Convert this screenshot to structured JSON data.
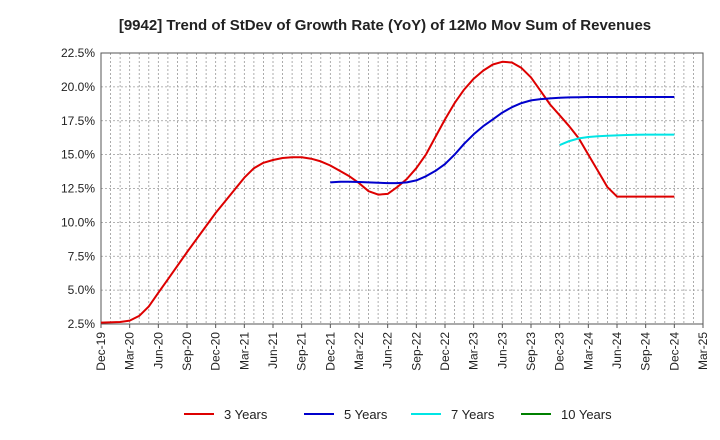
{
  "chart_data": {
    "type": "line",
    "title": "[9942]  Trend of StDev of Growth Rate (YoY) of 12Mo Mov Sum of Revenues",
    "xlabel": "",
    "ylabel": "",
    "ylim": [
      2.5,
      22.5
    ],
    "y_ticks": [
      2.5,
      5.0,
      7.5,
      10.0,
      12.5,
      15.0,
      17.5,
      20.0,
      22.5
    ],
    "y_tick_labels": [
      "2.5%",
      "5.0%",
      "7.5%",
      "10.0%",
      "12.5%",
      "15.0%",
      "17.5%",
      "20.0%",
      "22.5%"
    ],
    "x_tick_labels": [
      "Dec-19",
      "Mar-20",
      "Jun-20",
      "Sep-20",
      "Dec-20",
      "Mar-21",
      "Jun-21",
      "Sep-21",
      "Dec-21",
      "Mar-22",
      "Jun-22",
      "Sep-22",
      "Dec-22",
      "Mar-23",
      "Jun-23",
      "Sep-23",
      "Dec-23",
      "Mar-24",
      "Jun-24",
      "Sep-24",
      "Dec-24",
      "Mar-25"
    ],
    "x_range_months": [
      0,
      63
    ],
    "grid": true,
    "legend_position": "bottom",
    "series": [
      {
        "name": "3 Years",
        "color": "#dd0000",
        "x": [
          0,
          2,
          3,
          4,
          5,
          6,
          7,
          9,
          12,
          15,
          16,
          17,
          18,
          19,
          20,
          21,
          22,
          23,
          24,
          25,
          26,
          27,
          28,
          29,
          30,
          31,
          32,
          33,
          34,
          35,
          36,
          37,
          38,
          39,
          40,
          41,
          42,
          43,
          44,
          45,
          46,
          47,
          48,
          49,
          50,
          51,
          52,
          53,
          54,
          55,
          56,
          57,
          58,
          59,
          60
        ],
        "values": [
          2.6,
          2.65,
          2.75,
          3.1,
          3.8,
          4.8,
          5.8,
          7.8,
          10.7,
          13.3,
          14.0,
          14.4,
          14.6,
          14.75,
          14.8,
          14.8,
          14.7,
          14.5,
          14.2,
          13.8,
          13.4,
          12.9,
          12.3,
          12.05,
          12.1,
          12.6,
          13.2,
          14.0,
          15.0,
          16.3,
          17.6,
          18.8,
          19.8,
          20.6,
          21.2,
          21.65,
          21.85,
          21.8,
          21.4,
          20.7,
          19.7,
          18.7,
          17.9,
          17.1,
          16.2,
          15.0,
          13.8,
          12.6,
          11.9,
          11.9,
          11.9,
          11.9,
          11.9,
          11.9,
          11.9
        ]
      },
      {
        "name": "5 Years",
        "color": "#0000cc",
        "x": [
          24,
          25,
          26,
          27,
          28,
          29,
          30,
          31,
          32,
          33,
          34,
          35,
          36,
          37,
          38,
          39,
          40,
          41,
          42,
          43,
          44,
          45,
          46,
          47,
          48,
          49,
          50,
          51,
          52,
          53,
          54,
          55,
          56,
          57,
          58,
          59,
          60
        ],
        "values": [
          12.95,
          13.0,
          13.0,
          12.98,
          12.95,
          12.92,
          12.9,
          12.9,
          12.95,
          13.1,
          13.4,
          13.8,
          14.3,
          15.0,
          15.8,
          16.5,
          17.1,
          17.6,
          18.1,
          18.5,
          18.8,
          19.0,
          19.1,
          19.15,
          19.2,
          19.22,
          19.24,
          19.25,
          19.25,
          19.25,
          19.25,
          19.25,
          19.25,
          19.25,
          19.25,
          19.25,
          19.25
        ]
      },
      {
        "name": "7 Years",
        "color": "#00e5e5",
        "x": [
          48,
          49,
          50,
          51,
          52,
          53,
          54,
          55,
          56,
          57,
          58,
          59,
          60
        ],
        "values": [
          15.7,
          16.0,
          16.2,
          16.3,
          16.35,
          16.4,
          16.42,
          16.45,
          16.47,
          16.48,
          16.48,
          16.48,
          16.48
        ]
      },
      {
        "name": "10 Years",
        "color": "#008000",
        "x": [],
        "values": []
      }
    ]
  }
}
